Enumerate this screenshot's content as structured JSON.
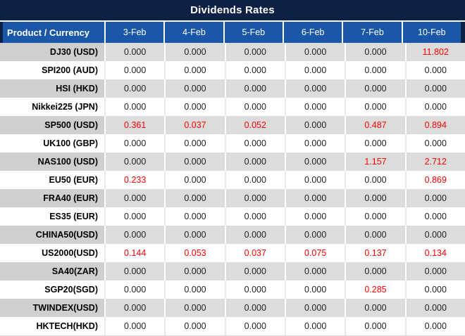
{
  "title": "Dividends Rates",
  "colors": {
    "title_bg": "#0d2145",
    "header_bg": "#1b57a8",
    "gray_row_label_bg": "#d0cece",
    "gray_row_value_bg": "#dcdcdc",
    "highlight_red": "#ff0000",
    "header_text": "#ffffff",
    "value_text": "#1f1f1f"
  },
  "table": {
    "corner_header": "Product / Currency",
    "date_headers": [
      "3-Feb",
      "4-Feb",
      "5-Feb",
      "6-Feb",
      "7-Feb",
      "10-Feb"
    ],
    "rows": [
      {
        "product": "DJ30 (USD)",
        "values": [
          "0.000",
          "0.000",
          "0.000",
          "0.000",
          "0.000",
          "11.802"
        ],
        "red": [
          false,
          false,
          false,
          false,
          false,
          true
        ]
      },
      {
        "product": "SPI200 (AUD)",
        "values": [
          "0.000",
          "0.000",
          "0.000",
          "0.000",
          "0.000",
          "0.000"
        ],
        "red": [
          false,
          false,
          false,
          false,
          false,
          false
        ]
      },
      {
        "product": "HSI (HKD)",
        "values": [
          "0.000",
          "0.000",
          "0.000",
          "0.000",
          "0.000",
          "0.000"
        ],
        "red": [
          false,
          false,
          false,
          false,
          false,
          false
        ]
      },
      {
        "product": "Nikkei225 (JPN)",
        "values": [
          "0.000",
          "0.000",
          "0.000",
          "0.000",
          "0.000",
          "0.000"
        ],
        "red": [
          false,
          false,
          false,
          false,
          false,
          false
        ]
      },
      {
        "product": "SP500 (USD)",
        "values": [
          "0.361",
          "0.037",
          "0.052",
          "0.000",
          "0.487",
          "0.894"
        ],
        "red": [
          true,
          true,
          true,
          false,
          true,
          true
        ]
      },
      {
        "product": "UK100 (GBP)",
        "values": [
          "0.000",
          "0.000",
          "0.000",
          "0.000",
          "0.000",
          "0.000"
        ],
        "red": [
          false,
          false,
          false,
          false,
          false,
          false
        ]
      },
      {
        "product": "NAS100 (USD)",
        "values": [
          "0.000",
          "0.000",
          "0.000",
          "0.000",
          "1.157",
          "2.712"
        ],
        "red": [
          false,
          false,
          false,
          false,
          true,
          true
        ]
      },
      {
        "product": "EU50 (EUR)",
        "values": [
          "0.233",
          "0.000",
          "0.000",
          "0.000",
          "0.000",
          "0.869"
        ],
        "red": [
          true,
          false,
          false,
          false,
          false,
          true
        ]
      },
      {
        "product": "FRA40 (EUR)",
        "values": [
          "0.000",
          "0.000",
          "0.000",
          "0.000",
          "0.000",
          "0.000"
        ],
        "red": [
          false,
          false,
          false,
          false,
          false,
          false
        ]
      },
      {
        "product": "ES35 (EUR)",
        "values": [
          "0.000",
          "0.000",
          "0.000",
          "0.000",
          "0.000",
          "0.000"
        ],
        "red": [
          false,
          false,
          false,
          false,
          false,
          false
        ]
      },
      {
        "product": "CHINA50(USD)",
        "values": [
          "0.000",
          "0.000",
          "0.000",
          "0.000",
          "0.000",
          "0.000"
        ],
        "red": [
          false,
          false,
          false,
          false,
          false,
          false
        ]
      },
      {
        "product": "US2000(USD)",
        "values": [
          "0.144",
          "0.053",
          "0.037",
          "0.075",
          "0.137",
          "0.134"
        ],
        "red": [
          true,
          true,
          true,
          true,
          true,
          true
        ]
      },
      {
        "product": "SA40(ZAR)",
        "values": [
          "0.000",
          "0.000",
          "0.000",
          "0.000",
          "0.000",
          "0.000"
        ],
        "red": [
          false,
          false,
          false,
          false,
          false,
          false
        ]
      },
      {
        "product": "SGP20(SGD)",
        "values": [
          "0.000",
          "0.000",
          "0.000",
          "0.000",
          "0.285",
          "0.000"
        ],
        "red": [
          false,
          false,
          false,
          false,
          true,
          false
        ]
      },
      {
        "product": "TWINDEX(USD)",
        "values": [
          "0.000",
          "0.000",
          "0.000",
          "0.000",
          "0.000",
          "0.000"
        ],
        "red": [
          false,
          false,
          false,
          false,
          false,
          false
        ]
      },
      {
        "product": "HKTECH(HKD)",
        "values": [
          "0.000",
          "0.000",
          "0.000",
          "0.000",
          "0.000",
          "0.000"
        ],
        "red": [
          false,
          false,
          false,
          false,
          false,
          false
        ]
      }
    ]
  }
}
